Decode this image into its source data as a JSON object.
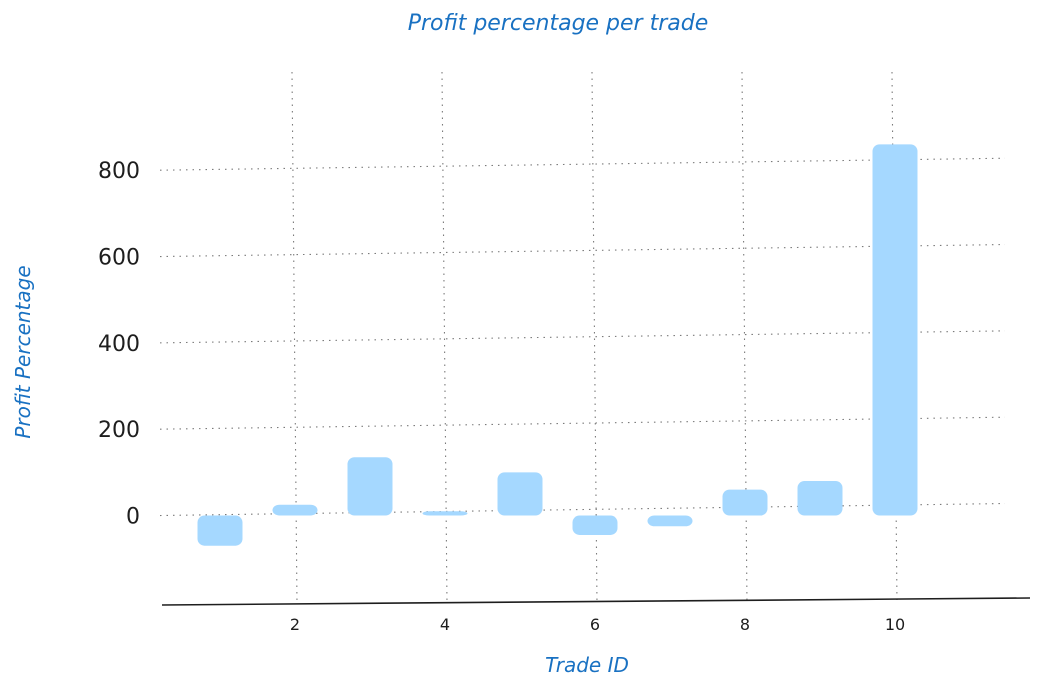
{
  "chart_data": {
    "type": "bar",
    "title": "Profit percentage per trade",
    "xlabel": "Trade ID",
    "ylabel": "Profit Percentage",
    "x": [
      1,
      2,
      3,
      4,
      5,
      6,
      7,
      8,
      9,
      10
    ],
    "values": [
      -70,
      25,
      135,
      10,
      100,
      -45,
      -25,
      60,
      80,
      860
    ],
    "x_ticks": [
      2,
      4,
      6,
      8,
      10
    ],
    "y_ticks": [
      0,
      200,
      400,
      600,
      800
    ],
    "xlim": [
      0.2,
      11.8
    ],
    "ylim": [
      -205,
      870
    ],
    "grid": true,
    "legend": "none"
  },
  "colors": {
    "bar_fill": "#a5d8ff",
    "text_accent": "#1971c2",
    "tick_text": "#1e1e1e",
    "grid": "#7a7a7a",
    "axis": "#1e1e1e"
  }
}
